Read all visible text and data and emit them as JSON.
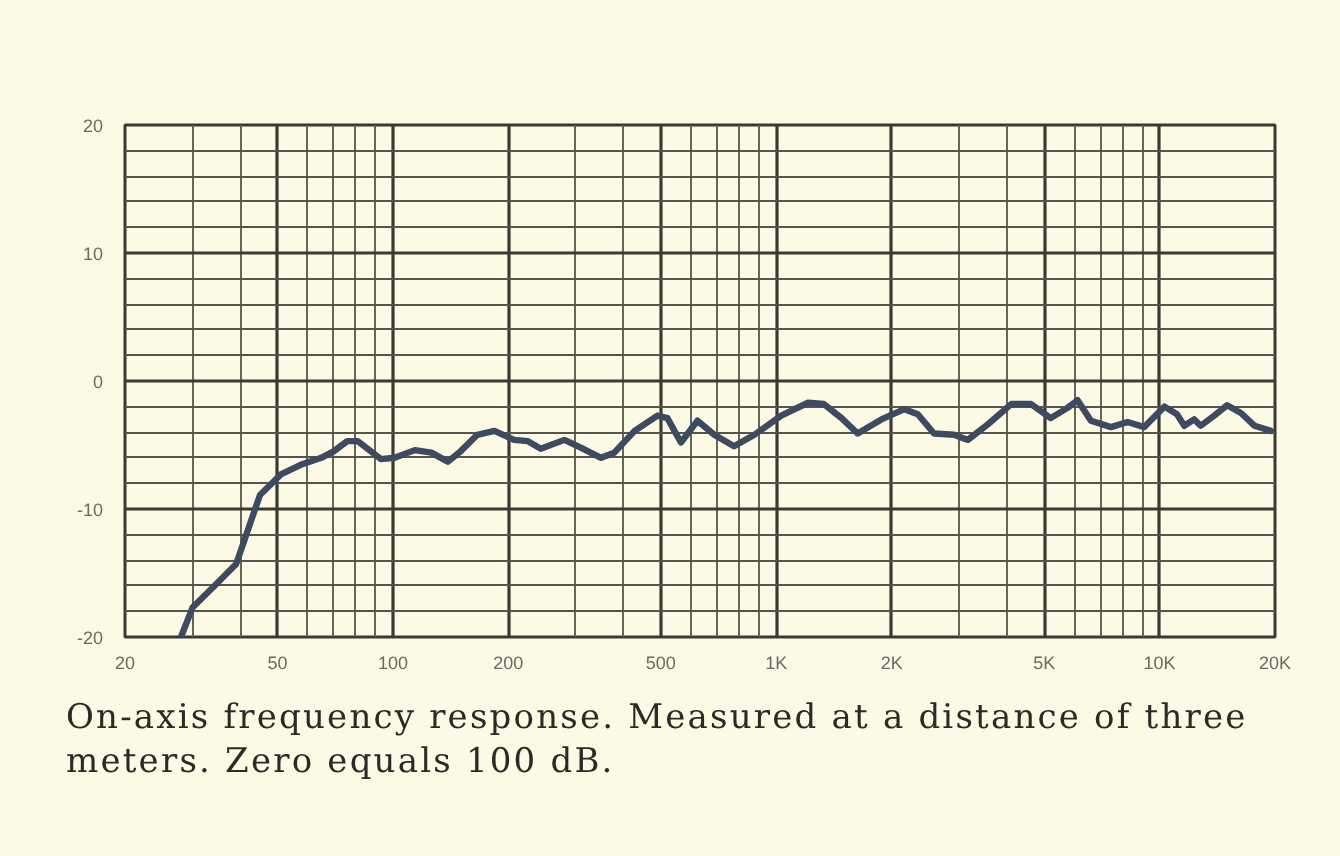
{
  "chart_data": {
    "type": "line",
    "x": [
      28,
      30,
      34,
      39,
      42,
      45,
      51,
      58,
      65,
      70,
      76,
      81,
      93,
      101,
      114,
      126,
      139,
      150,
      166,
      184,
      207,
      225,
      243,
      280,
      309,
      349,
      378,
      427,
      490,
      520,
      564,
      623,
      689,
      776,
      877,
      1030,
      1210,
      1330,
      1480,
      1630,
      1880,
      2160,
      2340,
      2580,
      2910,
      3160,
      3560,
      4100,
      4620,
      5200,
      5750,
      6110,
      6620,
      7470,
      8250,
      9120,
      10300,
      11100,
      11600,
      12300,
      12800,
      13900,
      15000,
      16300,
      17700,
      19500
    ],
    "series": [
      {
        "color": "#3d4b60",
        "values": [
          -20,
          -17.7,
          -16.1,
          -14.3,
          -11.5,
          -8.9,
          -7.3,
          -6.5,
          -6.0,
          -5.5,
          -4.7,
          -4.7,
          -6.1,
          -6.0,
          -5.4,
          -5.6,
          -6.3,
          -5.5,
          -4.2,
          -3.9,
          -4.6,
          -4.7,
          -5.3,
          -4.6,
          -5.2,
          -6.0,
          -5.6,
          -3.9,
          -2.7,
          -2.9,
          -4.8,
          -3.1,
          -4.2,
          -5.1,
          -4.2,
          -2.7,
          -1.7,
          -1.8,
          -2.9,
          -4.1,
          -3.0,
          -2.2,
          -2.6,
          -4.1,
          -4.2,
          -4.6,
          -3.4,
          -1.8,
          -1.8,
          -2.9,
          -2.1,
          -1.5,
          -3.1,
          -3.6,
          -3.2,
          -3.6,
          -2.0,
          -2.6,
          -3.5,
          -3.0,
          -3.5,
          -2.7,
          -1.9,
          -2.5,
          -3.5,
          -3.9
        ]
      }
    ],
    "xlim": [
      20,
      20000
    ],
    "ylim": [
      -20,
      20
    ],
    "xticks": [
      20,
      50,
      100,
      200,
      500,
      {
        "value": 1000,
        "label": "1K"
      },
      {
        "value": 2000,
        "label": "2K"
      },
      {
        "value": 5000,
        "label": "5K"
      },
      {
        "value": 10000,
        "label": "10K"
      },
      {
        "value": 20000,
        "label": "20K"
      }
    ],
    "yticks": [
      -20,
      -10,
      0,
      10,
      20
    ],
    "log": "x",
    "grid": true,
    "marker": "none",
    "line_style": "solid",
    "annotations": [
      "On-axis frequency response. Measured at a distance of three meters. Zero equals 100 dB."
    ]
  }
}
